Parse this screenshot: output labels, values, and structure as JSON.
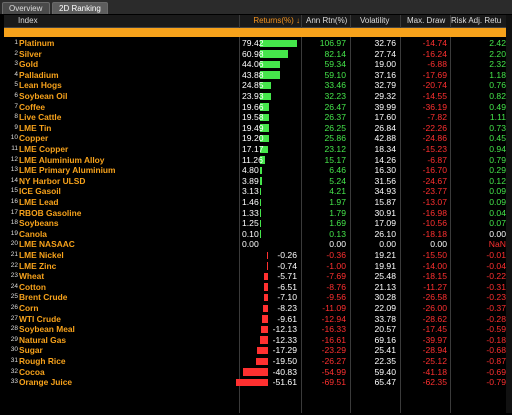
{
  "tabs": [
    "Overview",
    "2D Ranking"
  ],
  "headers": {
    "index": "Index",
    "returns": "Returns(%) ↓",
    "ann_rtn": "Ann Rtn(%)",
    "volatility": "Volatility",
    "max_draw": "Max. Draw",
    "risk_adj": "Risk Adj. Retu"
  },
  "colors": {
    "positive_bar": "#45e64b",
    "negative_bar": "#ff3030",
    "orange_band": "#f7a21b"
  },
  "rows": [
    {
      "i": "1",
      "name": "Platinum",
      "ret": "79.42",
      "ret_num": 79.42,
      "ann": "106.97",
      "vol": "32.76",
      "md": "-14.74",
      "ra": "2.42"
    },
    {
      "i": "2",
      "name": "Silver",
      "ret": "60.98",
      "ret_num": 60.98,
      "ann": "82.14",
      "vol": "27.74",
      "md": "-16.24",
      "ra": "2.20"
    },
    {
      "i": "3",
      "name": "Gold",
      "ret": "44.06",
      "ret_num": 44.06,
      "ann": "59.34",
      "vol": "19.00",
      "md": "-6.88",
      "ra": "2.32"
    },
    {
      "i": "4",
      "name": "Palladium",
      "ret": "43.88",
      "ret_num": 43.88,
      "ann": "59.10",
      "vol": "37.16",
      "md": "-17.69",
      "ra": "1.18"
    },
    {
      "i": "5",
      "name": "Lean Hogs",
      "ret": "24.85",
      "ret_num": 24.85,
      "ann": "33.46",
      "vol": "32.79",
      "md": "-20.74",
      "ra": "0.76"
    },
    {
      "i": "6",
      "name": "Soybean Oil",
      "ret": "23.93",
      "ret_num": 23.93,
      "ann": "32.23",
      "vol": "29.32",
      "md": "-14.55",
      "ra": "0.82"
    },
    {
      "i": "7",
      "name": "Coffee",
      "ret": "19.66",
      "ret_num": 19.66,
      "ann": "26.47",
      "vol": "39.99",
      "md": "-36.19",
      "ra": "0.49"
    },
    {
      "i": "8",
      "name": "Live Cattle",
      "ret": "19.58",
      "ret_num": 19.58,
      "ann": "26.37",
      "vol": "17.60",
      "md": "-7.82",
      "ra": "1.11"
    },
    {
      "i": "9",
      "name": "LME Tin",
      "ret": "19.49",
      "ret_num": 19.49,
      "ann": "26.25",
      "vol": "26.84",
      "md": "-22.26",
      "ra": "0.73"
    },
    {
      "i": "10",
      "name": "Copper",
      "ret": "19.20",
      "ret_num": 19.2,
      "ann": "25.86",
      "vol": "42.88",
      "md": "-24.86",
      "ra": "0.45"
    },
    {
      "i": "11",
      "name": "LME Copper",
      "ret": "17.17",
      "ret_num": 17.17,
      "ann": "23.12",
      "vol": "18.34",
      "md": "-15.23",
      "ra": "0.94"
    },
    {
      "i": "12",
      "name": "LME Aluminium Alloy",
      "ret": "11.26",
      "ret_num": 11.26,
      "ann": "15.17",
      "vol": "14.26",
      "md": "-6.87",
      "ra": "0.79"
    },
    {
      "i": "13",
      "name": "LME Primary Aluminium",
      "ret": "4.80",
      "ret_num": 4.8,
      "ann": "6.46",
      "vol": "16.30",
      "md": "-16.70",
      "ra": "0.29"
    },
    {
      "i": "14",
      "name": "NY Harbor ULSD",
      "ret": "3.89",
      "ret_num": 3.89,
      "ann": "5.24",
      "vol": "31.56",
      "md": "-24.67",
      "ra": "0.12"
    },
    {
      "i": "15",
      "name": "ICE Gasoil",
      "ret": "3.13",
      "ret_num": 3.13,
      "ann": "4.21",
      "vol": "34.93",
      "md": "-23.77",
      "ra": "0.09"
    },
    {
      "i": "16",
      "name": "LME Lead",
      "ret": "1.46",
      "ret_num": 1.46,
      "ann": "1.97",
      "vol": "15.87",
      "md": "-13.07",
      "ra": "0.09"
    },
    {
      "i": "17",
      "name": "RBOB Gasoline",
      "ret": "1.33",
      "ret_num": 1.33,
      "ann": "1.79",
      "vol": "30.91",
      "md": "-16.98",
      "ra": "0.04"
    },
    {
      "i": "18",
      "name": "Soybeans",
      "ret": "1.25",
      "ret_num": 1.25,
      "ann": "1.69",
      "vol": "17.09",
      "md": "-10.56",
      "ra": "0.07"
    },
    {
      "i": "19",
      "name": "Canola",
      "ret": "0.10",
      "ret_num": 0.1,
      "ann": "0.13",
      "vol": "26.10",
      "md": "-18.18",
      "ra": "0.00"
    },
    {
      "i": "20",
      "name": "LME NASAAC",
      "ret": "0.00",
      "ret_num": 0.0,
      "ann": "0.00",
      "vol": "0.00",
      "md": "0.00",
      "ra": "NaN"
    },
    {
      "i": "21",
      "name": "LME Nickel",
      "ret": "-0.26",
      "ret_num": -0.26,
      "ann": "-0.36",
      "vol": "19.21",
      "md": "-15.50",
      "ra": "-0.01"
    },
    {
      "i": "22",
      "name": "LME Zinc",
      "ret": "-0.74",
      "ret_num": -0.74,
      "ann": "-1.00",
      "vol": "19.91",
      "md": "-14.00",
      "ra": "-0.04"
    },
    {
      "i": "23",
      "name": "Wheat",
      "ret": "-5.71",
      "ret_num": -5.71,
      "ann": "-7.69",
      "vol": "25.48",
      "md": "-18.15",
      "ra": "-0.22"
    },
    {
      "i": "24",
      "name": "Cotton",
      "ret": "-6.51",
      "ret_num": -6.51,
      "ann": "-8.76",
      "vol": "21.13",
      "md": "-11.27",
      "ra": "-0.31"
    },
    {
      "i": "25",
      "name": "Brent Crude",
      "ret": "-7.10",
      "ret_num": -7.1,
      "ann": "-9.56",
      "vol": "30.28",
      "md": "-26.58",
      "ra": "-0.23"
    },
    {
      "i": "26",
      "name": "Corn",
      "ret": "-8.23",
      "ret_num": -8.23,
      "ann": "-11.09",
      "vol": "22.09",
      "md": "-26.00",
      "ra": "-0.37"
    },
    {
      "i": "27",
      "name": "WTI Crude",
      "ret": "-9.61",
      "ret_num": -9.61,
      "ann": "-12.94",
      "vol": "33.78",
      "md": "-28.62",
      "ra": "-0.28"
    },
    {
      "i": "28",
      "name": "Soybean Meal",
      "ret": "-12.13",
      "ret_num": -12.13,
      "ann": "-16.33",
      "vol": "20.57",
      "md": "-17.45",
      "ra": "-0.59"
    },
    {
      "i": "29",
      "name": "Natural Gas",
      "ret": "-12.33",
      "ret_num": -12.33,
      "ann": "-16.61",
      "vol": "69.16",
      "md": "-39.97",
      "ra": "-0.18"
    },
    {
      "i": "30",
      "name": "Sugar",
      "ret": "-17.29",
      "ret_num": -17.29,
      "ann": "-23.29",
      "vol": "25.41",
      "md": "-28.94",
      "ra": "-0.68"
    },
    {
      "i": "31",
      "name": "Rough Rice",
      "ret": "-19.50",
      "ret_num": -19.5,
      "ann": "-26.27",
      "vol": "22.35",
      "md": "-25.12",
      "ra": "-0.87"
    },
    {
      "i": "32",
      "name": "Cocoa",
      "ret": "-40.83",
      "ret_num": -40.83,
      "ann": "-54.99",
      "vol": "59.40",
      "md": "-41.18",
      "ra": "-0.69"
    },
    {
      "i": "33",
      "name": "Orange Juice",
      "ret": "-51.61",
      "ret_num": -51.61,
      "ann": "-69.51",
      "vol": "65.47",
      "md": "-62.35",
      "ra": "-0.79"
    }
  ]
}
